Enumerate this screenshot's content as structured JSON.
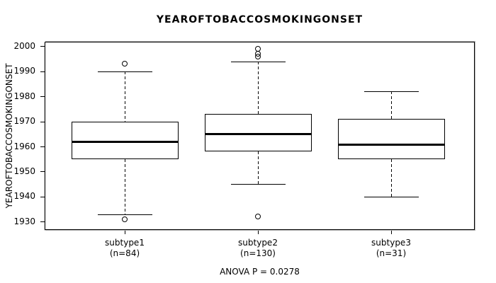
{
  "title": "YEAROFTOBACCOSMOKINGONSET",
  "chart_data": {
    "type": "boxplot",
    "title": "YEAROFTOBACCOSMOKINGONSET",
    "ylabel": "YEAROFTOBACCOSMOKINGONSET",
    "xlabel": "",
    "annotation": "ANOVA P = 0.0278",
    "ylim": [
      1926.7,
      2001.8
    ],
    "yticks": [
      1930,
      1940,
      1950,
      1960,
      1970,
      1980,
      1990,
      2000
    ],
    "grid": false,
    "categories": [
      "subtype1",
      "subtype2",
      "subtype3"
    ],
    "series": [
      {
        "label": "subtype1",
        "sublabel": "(n=84)",
        "n": 84,
        "whisker_low": 1933,
        "q1": 1955,
        "median": 1962,
        "q3": 1970,
        "whisker_high": 1990,
        "outliers": [
          1931,
          1993
        ]
      },
      {
        "label": "subtype2",
        "sublabel": "(n=130)",
        "n": 130,
        "whisker_low": 1945,
        "q1": 1958,
        "median": 1965,
        "q3": 1973,
        "whisker_high": 1994,
        "outliers": [
          1932,
          1996,
          1997,
          1999
        ]
      },
      {
        "label": "subtype3",
        "sublabel": "(n=31)",
        "n": 31,
        "whisker_low": 1940,
        "q1": 1955,
        "median": 1961,
        "q3": 1971,
        "whisker_high": 1982,
        "outliers": []
      }
    ],
    "colors": {
      "box_border": "#000000",
      "median": "#000000",
      "axis": "#000000",
      "background": "#ffffff"
    }
  }
}
